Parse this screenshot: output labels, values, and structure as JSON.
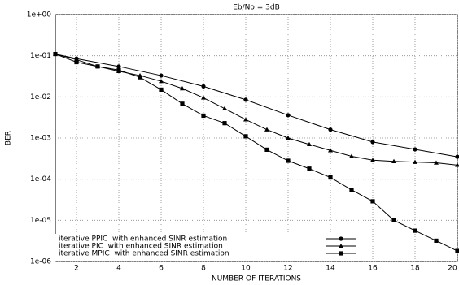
{
  "chart_data": {
    "type": "line",
    "title": "Eb/No = 3dB",
    "x_label": "NUMBER OF ITERATIONS",
    "y_label": "BER",
    "log_y": true,
    "grid": true,
    "legend": "lower left",
    "xlim": [
      1,
      20
    ],
    "xticks": [
      2,
      4,
      6,
      8,
      10,
      12,
      14,
      16,
      18,
      20
    ],
    "ylim": [
      1e-06,
      1
    ],
    "yticks": [
      {
        "value": 1,
        "label": "1e+00"
      },
      {
        "value": 0.1,
        "label": "1e-01"
      },
      {
        "value": 0.01,
        "label": "1e-02"
      },
      {
        "value": 0.001,
        "label": "1e-03"
      },
      {
        "value": 0.0001,
        "label": "1e-04"
      },
      {
        "value": 1e-05,
        "label": "1e-05"
      },
      {
        "value": 1e-06,
        "label": "1e-06"
      }
    ],
    "series": [
      {
        "name": "iterative PPIC  with enhanced SINR estimation",
        "color": "#000000",
        "marker": "circle",
        "x": [
          1,
          2,
          4,
          6,
          8,
          10,
          12,
          14,
          16,
          18,
          20
        ],
        "values": [
          0.11,
          0.085,
          0.055,
          0.033,
          0.018,
          0.0085,
          0.0036,
          0.0016,
          0.0008,
          0.00053,
          0.00035
        ]
      },
      {
        "name": "iterative PIC  with enhanced SINR estimation",
        "color": "#000000",
        "marker": "triangle",
        "x": [
          1,
          2,
          3,
          4,
          5,
          6,
          7,
          8,
          9,
          10,
          11,
          12,
          13,
          14,
          15,
          16,
          17,
          18,
          19,
          20
        ],
        "values": [
          0.11,
          0.08,
          0.055,
          0.042,
          0.033,
          0.024,
          0.016,
          0.0095,
          0.0052,
          0.0028,
          0.0016,
          0.001,
          0.0007,
          0.0005,
          0.00036,
          0.00029,
          0.00027,
          0.00026,
          0.00025,
          0.00022
        ]
      },
      {
        "name": "iterative MPIC  with enhanced SINR estimation",
        "color": "#000000",
        "marker": "square",
        "x": [
          1,
          2,
          3,
          4,
          5,
          6,
          7,
          8,
          9,
          10,
          11,
          12,
          13,
          14,
          15,
          16,
          17,
          18,
          19,
          20
        ],
        "values": [
          0.11,
          0.07,
          0.055,
          0.045,
          0.03,
          0.015,
          0.0068,
          0.0035,
          0.0023,
          0.0011,
          0.00052,
          0.00028,
          0.00018,
          0.00011,
          5.5e-05,
          2.9e-05,
          1e-05,
          5.6e-06,
          3.2e-06,
          1.8e-06
        ]
      }
    ]
  }
}
